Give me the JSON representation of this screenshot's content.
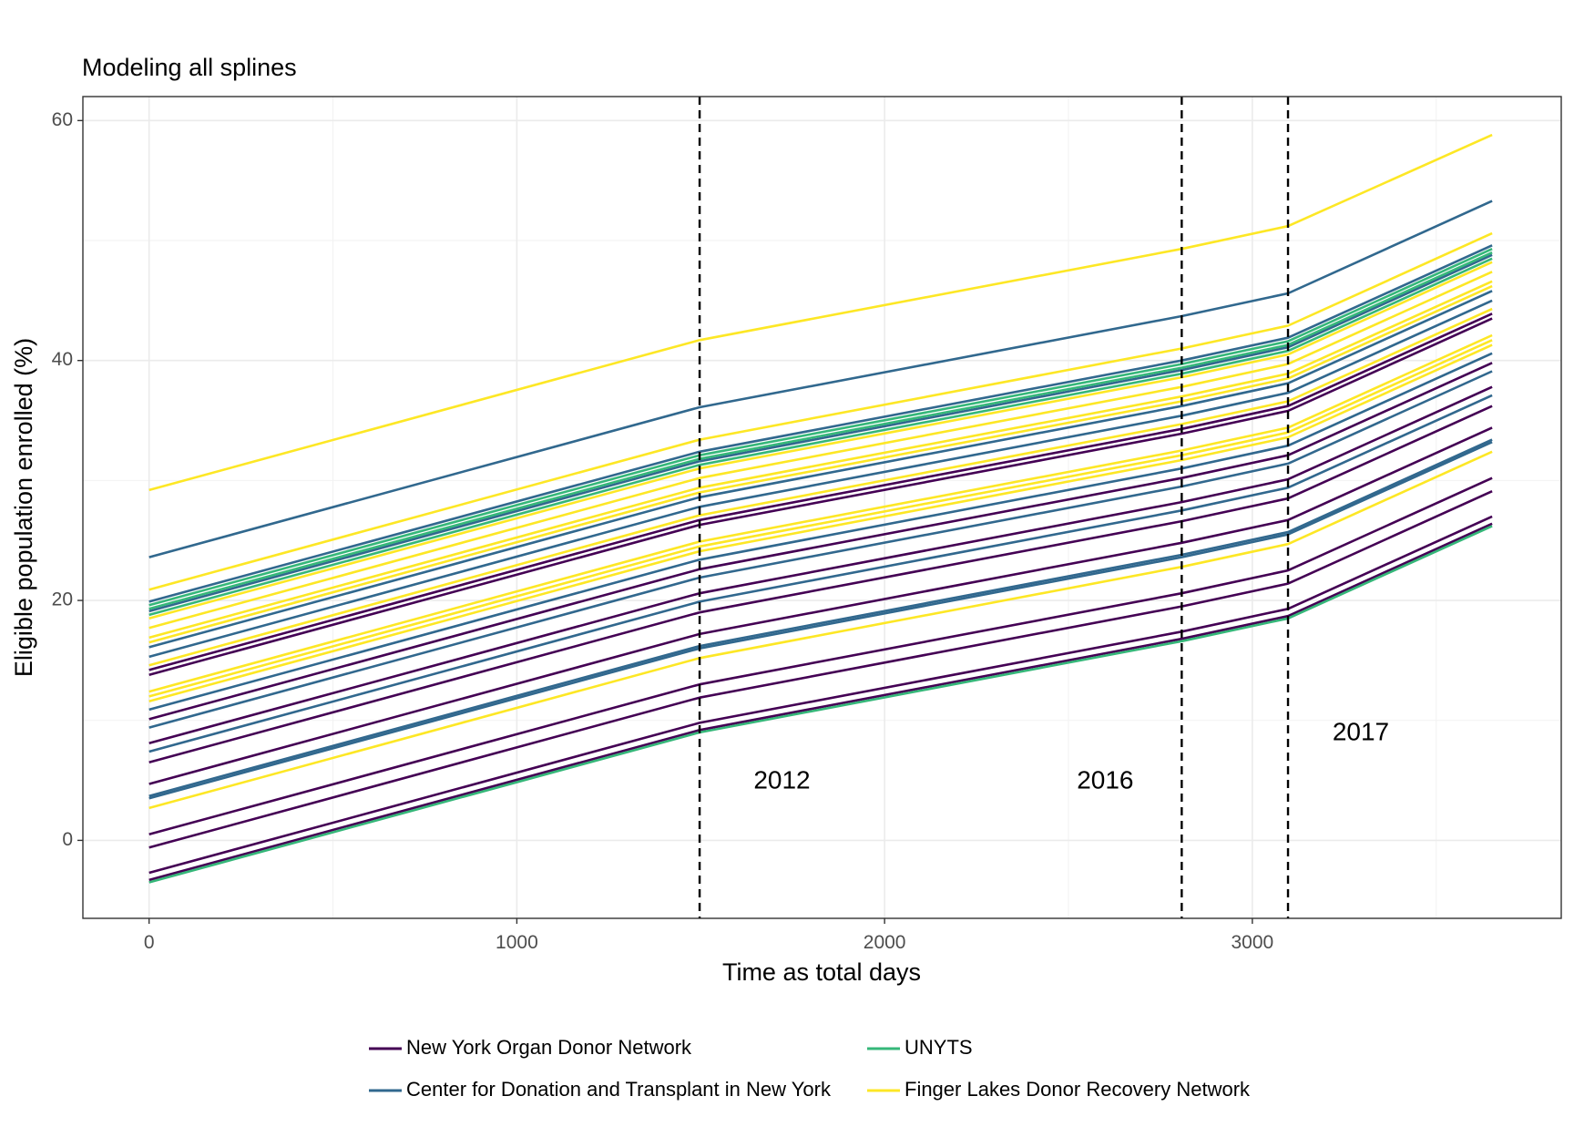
{
  "chart_data": {
    "type": "line",
    "title": "Modeling all splines",
    "xlabel": "Time as total days",
    "ylabel": "Eligible population enrolled (%)",
    "xlim": [
      -180,
      3840
    ],
    "ylim": [
      -6.5,
      62
    ],
    "x_ticks": [
      0,
      1000,
      2000,
      3000
    ],
    "y_ticks": [
      0,
      20,
      40,
      60
    ],
    "grid": true,
    "legend_position": "bottom",
    "legend": [
      {
        "name": "New York Organ Donor Network",
        "color": "#440154"
      },
      {
        "name": "UNYTS",
        "color": "#35b779"
      },
      {
        "name": "Center for Donation and Transplant in New York",
        "color": "#31688e"
      },
      {
        "name": "Finger Lakes Donor Recovery Network",
        "color": "#fde725"
      }
    ],
    "group_colors": {
      "New York Organ Donor Network": "#440154",
      "UNYTS": "#35b779",
      "Center for Donation and Transplant in New York": "#31688e",
      "Finger Lakes Donor Recovery Network": "#fde725"
    },
    "x": [
      0,
      1497,
      2808,
      3097,
      3652
    ],
    "vlines": [
      {
        "x": 1497,
        "label": "2012",
        "label_x": 1721,
        "label_y": 4.9
      },
      {
        "x": 2808,
        "label": "2016",
        "label_x": 2600,
        "label_y": 4.9
      },
      {
        "x": 3097,
        "label": "2017",
        "label_x": 3295,
        "label_y": 8.9
      }
    ],
    "series": [
      {
        "group": "UNYTS",
        "values": [
          -3.5,
          9.0,
          16.6,
          18.5,
          26.2
        ]
      },
      {
        "group": "UNYTS",
        "values": [
          18.8,
          31.3,
          38.9,
          40.8,
          48.5
        ]
      },
      {
        "group": "UNYTS",
        "values": [
          19.3,
          31.8,
          39.4,
          41.3,
          49.0
        ]
      },
      {
        "group": "UNYTS",
        "values": [
          19.6,
          32.1,
          39.7,
          41.6,
          49.3
        ]
      },
      {
        "group": "New York Organ Donor Network",
        "values": [
          -3.3,
          9.2,
          16.8,
          18.7,
          26.4
        ]
      },
      {
        "group": "New York Organ Donor Network",
        "values": [
          -2.7,
          9.8,
          17.4,
          19.3,
          27.0
        ]
      },
      {
        "group": "New York Organ Donor Network",
        "values": [
          -0.6,
          11.9,
          19.5,
          21.4,
          29.1
        ]
      },
      {
        "group": "New York Organ Donor Network",
        "values": [
          0.5,
          13.0,
          20.6,
          22.5,
          30.2
        ]
      },
      {
        "group": "New York Organ Donor Network",
        "values": [
          4.7,
          17.2,
          24.8,
          26.7,
          34.4
        ]
      },
      {
        "group": "New York Organ Donor Network",
        "values": [
          6.5,
          19.0,
          26.6,
          28.5,
          36.2
        ]
      },
      {
        "group": "New York Organ Donor Network",
        "values": [
          8.1,
          20.6,
          28.2,
          30.1,
          37.8
        ]
      },
      {
        "group": "New York Organ Donor Network",
        "values": [
          10.1,
          22.6,
          30.2,
          32.1,
          39.8
        ]
      },
      {
        "group": "New York Organ Donor Network",
        "values": [
          13.8,
          26.3,
          33.9,
          35.8,
          43.5
        ]
      },
      {
        "group": "New York Organ Donor Network",
        "values": [
          14.2,
          26.7,
          34.3,
          36.2,
          43.9
        ]
      },
      {
        "group": "Center for Donation and Transplant in New York",
        "values": [
          3.5,
          16.0,
          23.6,
          25.5,
          33.2
        ]
      },
      {
        "group": "Center for Donation and Transplant in New York",
        "values": [
          3.7,
          16.2,
          23.8,
          25.7,
          33.4
        ]
      },
      {
        "group": "Center for Donation and Transplant in New York",
        "values": [
          7.4,
          19.9,
          27.5,
          29.4,
          37.1
        ]
      },
      {
        "group": "Center for Donation and Transplant in New York",
        "values": [
          9.4,
          21.9,
          29.5,
          31.4,
          39.1
        ]
      },
      {
        "group": "Center for Donation and Transplant in New York",
        "values": [
          10.9,
          23.4,
          31.0,
          32.9,
          40.6
        ]
      },
      {
        "group": "Center for Donation and Transplant in New York",
        "values": [
          15.3,
          27.8,
          35.4,
          37.3,
          45.0
        ]
      },
      {
        "group": "Center for Donation and Transplant in New York",
        "values": [
          16.1,
          28.6,
          36.2,
          38.1,
          45.8
        ]
      },
      {
        "group": "Center for Donation and Transplant in New York",
        "values": [
          19.1,
          31.6,
          39.2,
          41.1,
          48.8
        ]
      },
      {
        "group": "Center for Donation and Transplant in New York",
        "values": [
          19.9,
          32.4,
          40.0,
          41.9,
          49.6
        ]
      },
      {
        "group": "Center for Donation and Transplant in New York",
        "values": [
          23.6,
          36.1,
          43.7,
          45.6,
          53.3
        ]
      },
      {
        "group": "Finger Lakes Donor Recovery Network",
        "values": [
          2.7,
          15.2,
          22.8,
          24.7,
          32.4
        ]
      },
      {
        "group": "Finger Lakes Donor Recovery Network",
        "values": [
          11.6,
          24.1,
          31.7,
          33.6,
          41.3
        ]
      },
      {
        "group": "Finger Lakes Donor Recovery Network",
        "values": [
          12.0,
          24.5,
          32.1,
          34.0,
          41.7
        ]
      },
      {
        "group": "Finger Lakes Donor Recovery Network",
        "values": [
          12.4,
          24.9,
          32.5,
          34.4,
          42.1
        ]
      },
      {
        "group": "Finger Lakes Donor Recovery Network",
        "values": [
          14.6,
          27.1,
          34.7,
          36.6,
          44.3
        ]
      },
      {
        "group": "Finger Lakes Donor Recovery Network",
        "values": [
          16.5,
          29.0,
          36.6,
          38.5,
          46.2
        ]
      },
      {
        "group": "Finger Lakes Donor Recovery Network",
        "values": [
          16.9,
          29.4,
          37.0,
          38.9,
          46.6
        ]
      },
      {
        "group": "Finger Lakes Donor Recovery Network",
        "values": [
          17.7,
          30.2,
          37.8,
          39.7,
          47.4
        ]
      },
      {
        "group": "Finger Lakes Donor Recovery Network",
        "values": [
          18.5,
          31.0,
          38.6,
          40.5,
          48.2
        ]
      },
      {
        "group": "Finger Lakes Donor Recovery Network",
        "values": [
          20.9,
          33.4,
          41.0,
          42.9,
          50.6
        ]
      },
      {
        "group": "Finger Lakes Donor Recovery Network",
        "values": [
          29.2,
          41.7,
          49.3,
          51.2,
          58.8
        ]
      }
    ]
  }
}
